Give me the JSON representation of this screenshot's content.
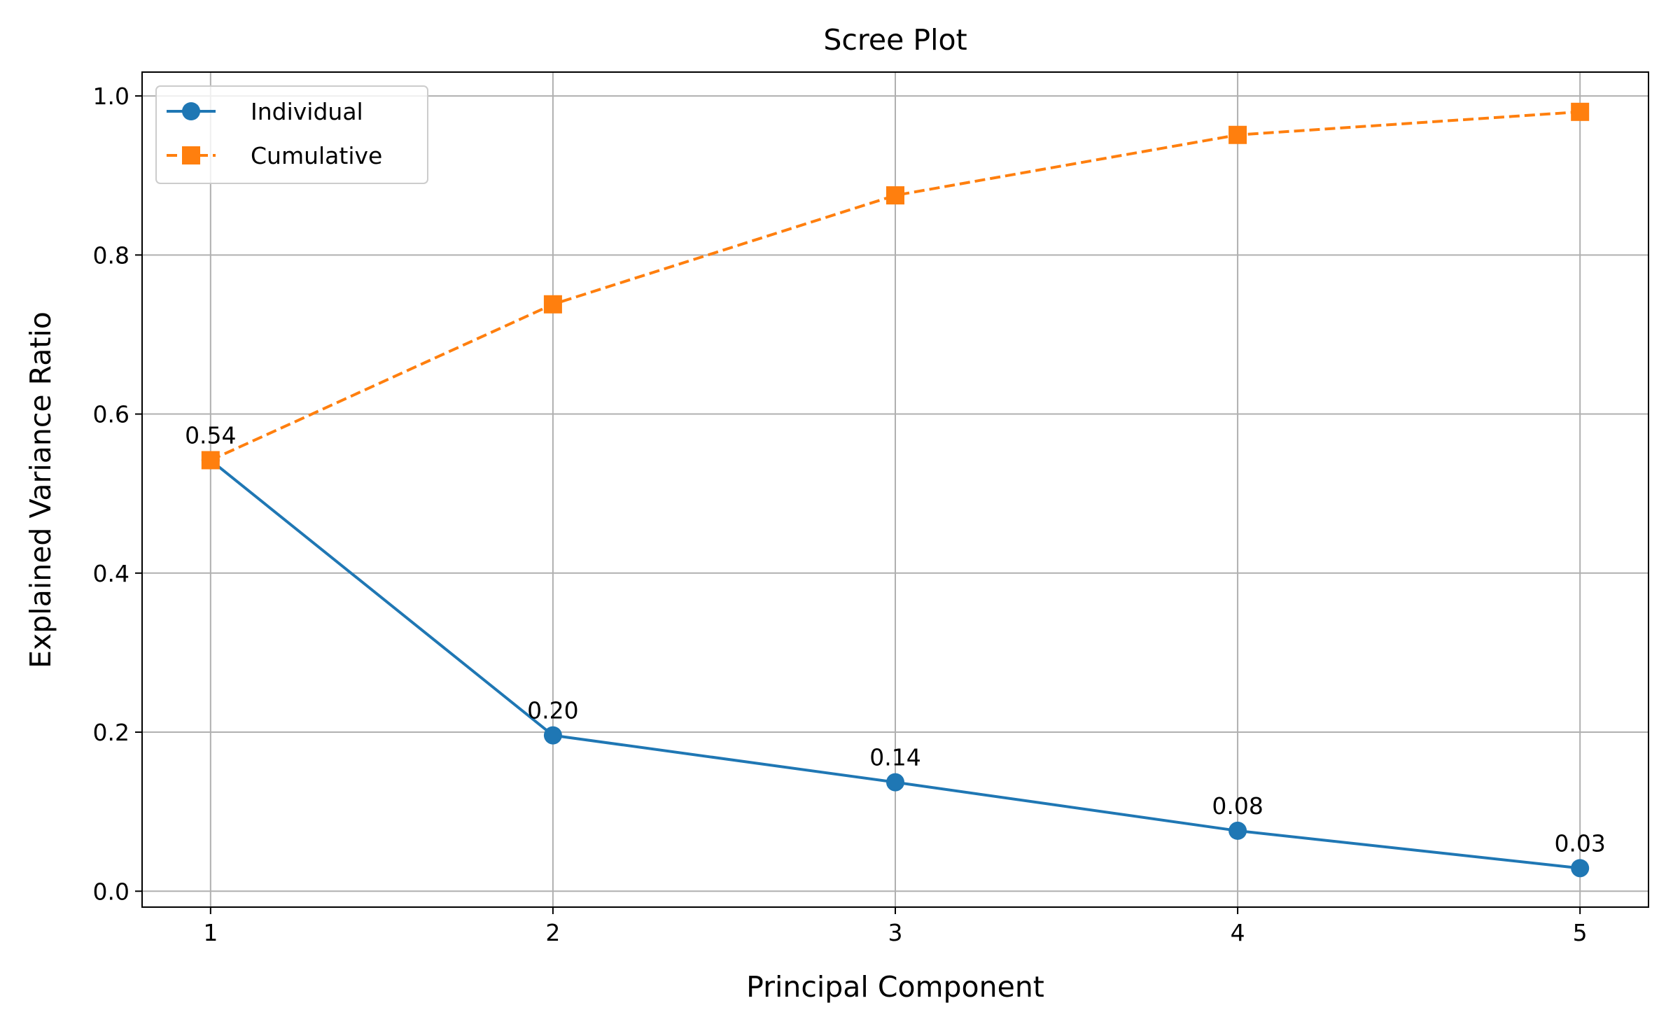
{
  "chart_data": {
    "type": "line",
    "title": "Scree Plot",
    "xlabel": "Principal Component",
    "ylabel": "Explained Variance Ratio",
    "x": [
      1,
      2,
      3,
      4,
      5
    ],
    "xlim": [
      0.8,
      5.2
    ],
    "ylim": [
      -0.02,
      1.03
    ],
    "x_ticks": [
      1,
      2,
      3,
      4,
      5
    ],
    "y_ticks": [
      "0.0",
      "0.2",
      "0.4",
      "0.6",
      "0.8",
      "1.0"
    ],
    "grid": true,
    "legend_position": "upper-left",
    "series": [
      {
        "name": "Individual",
        "values": [
          0.542,
          0.196,
          0.137,
          0.076,
          0.029
        ],
        "color": "#1f77b4",
        "line_style": "solid",
        "marker": "circle"
      },
      {
        "name": "Cumulative",
        "values": [
          0.542,
          0.738,
          0.875,
          0.951,
          0.98
        ],
        "color": "#ff7f0e",
        "line_style": "dashed",
        "marker": "square"
      }
    ],
    "annotations": [
      "0.54",
      "0.20",
      "0.14",
      "0.08",
      "0.03"
    ]
  }
}
